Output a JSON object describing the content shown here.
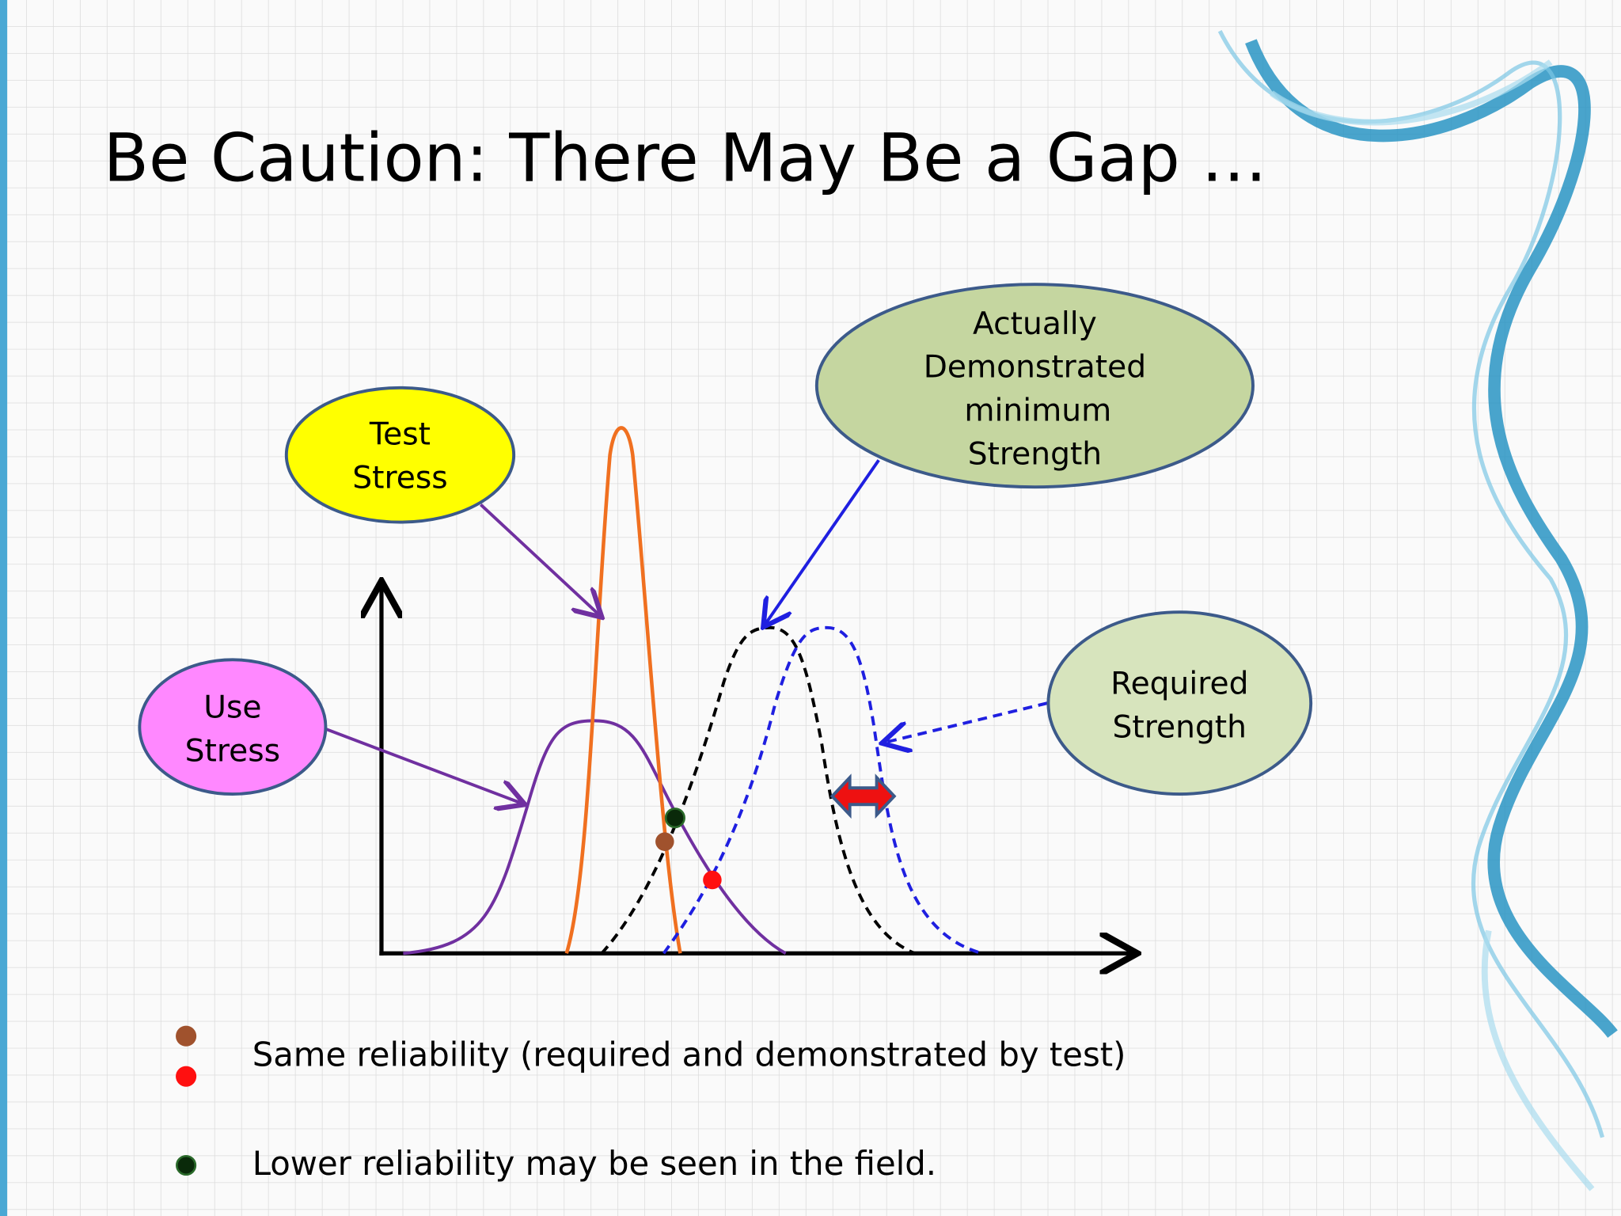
{
  "title": "Be Caution: There May Be a Gap …",
  "nodes": [
    {
      "lines": [
        "Test",
        "Stress"
      ]
    },
    {
      "lines": [
        "Use",
        "Stress"
      ]
    },
    {
      "lines": [
        "Actually",
        "Demonstrated",
        "minimum",
        "Strength"
      ]
    },
    {
      "lines": [
        "Required",
        "Strength"
      ]
    }
  ],
  "notes": [
    "Same reliability (required and demonstrated by test)",
    "Lower reliability may be seen in the field."
  ]
}
